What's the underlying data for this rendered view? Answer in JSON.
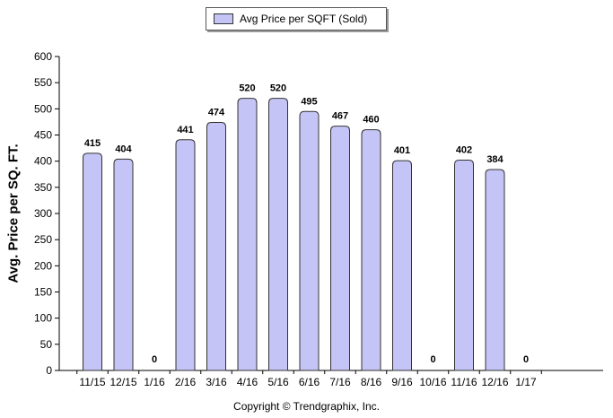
{
  "legend": {
    "label": "Avg Price per SQFT (Sold)"
  },
  "copyright": {
    "symbol": "©",
    "text": "Copyright © Trendgraphix, Inc."
  },
  "chart_data": {
    "type": "bar",
    "title": "",
    "xlabel": "",
    "ylabel": "Avg. Price per SQ. FT.",
    "ylim": [
      0,
      600
    ],
    "yticks": [
      0,
      50,
      100,
      150,
      200,
      250,
      300,
      350,
      400,
      450,
      500,
      550,
      600
    ],
    "categories": [
      "11/15",
      "12/15",
      "1/16",
      "2/16",
      "3/16",
      "4/16",
      "5/16",
      "6/16",
      "7/16",
      "8/16",
      "9/16",
      "10/16",
      "11/16",
      "12/16",
      "1/17"
    ],
    "series": [
      {
        "name": "Avg Price per SQFT (Sold)",
        "values": [
          415,
          404,
          0,
          441,
          474,
          520,
          520,
          495,
          467,
          460,
          401,
          0,
          402,
          384,
          0
        ]
      }
    ],
    "legend_position": "top-center",
    "grid": false,
    "bar_color": "#c4c4f6",
    "bar_edge_color": "#333333"
  }
}
